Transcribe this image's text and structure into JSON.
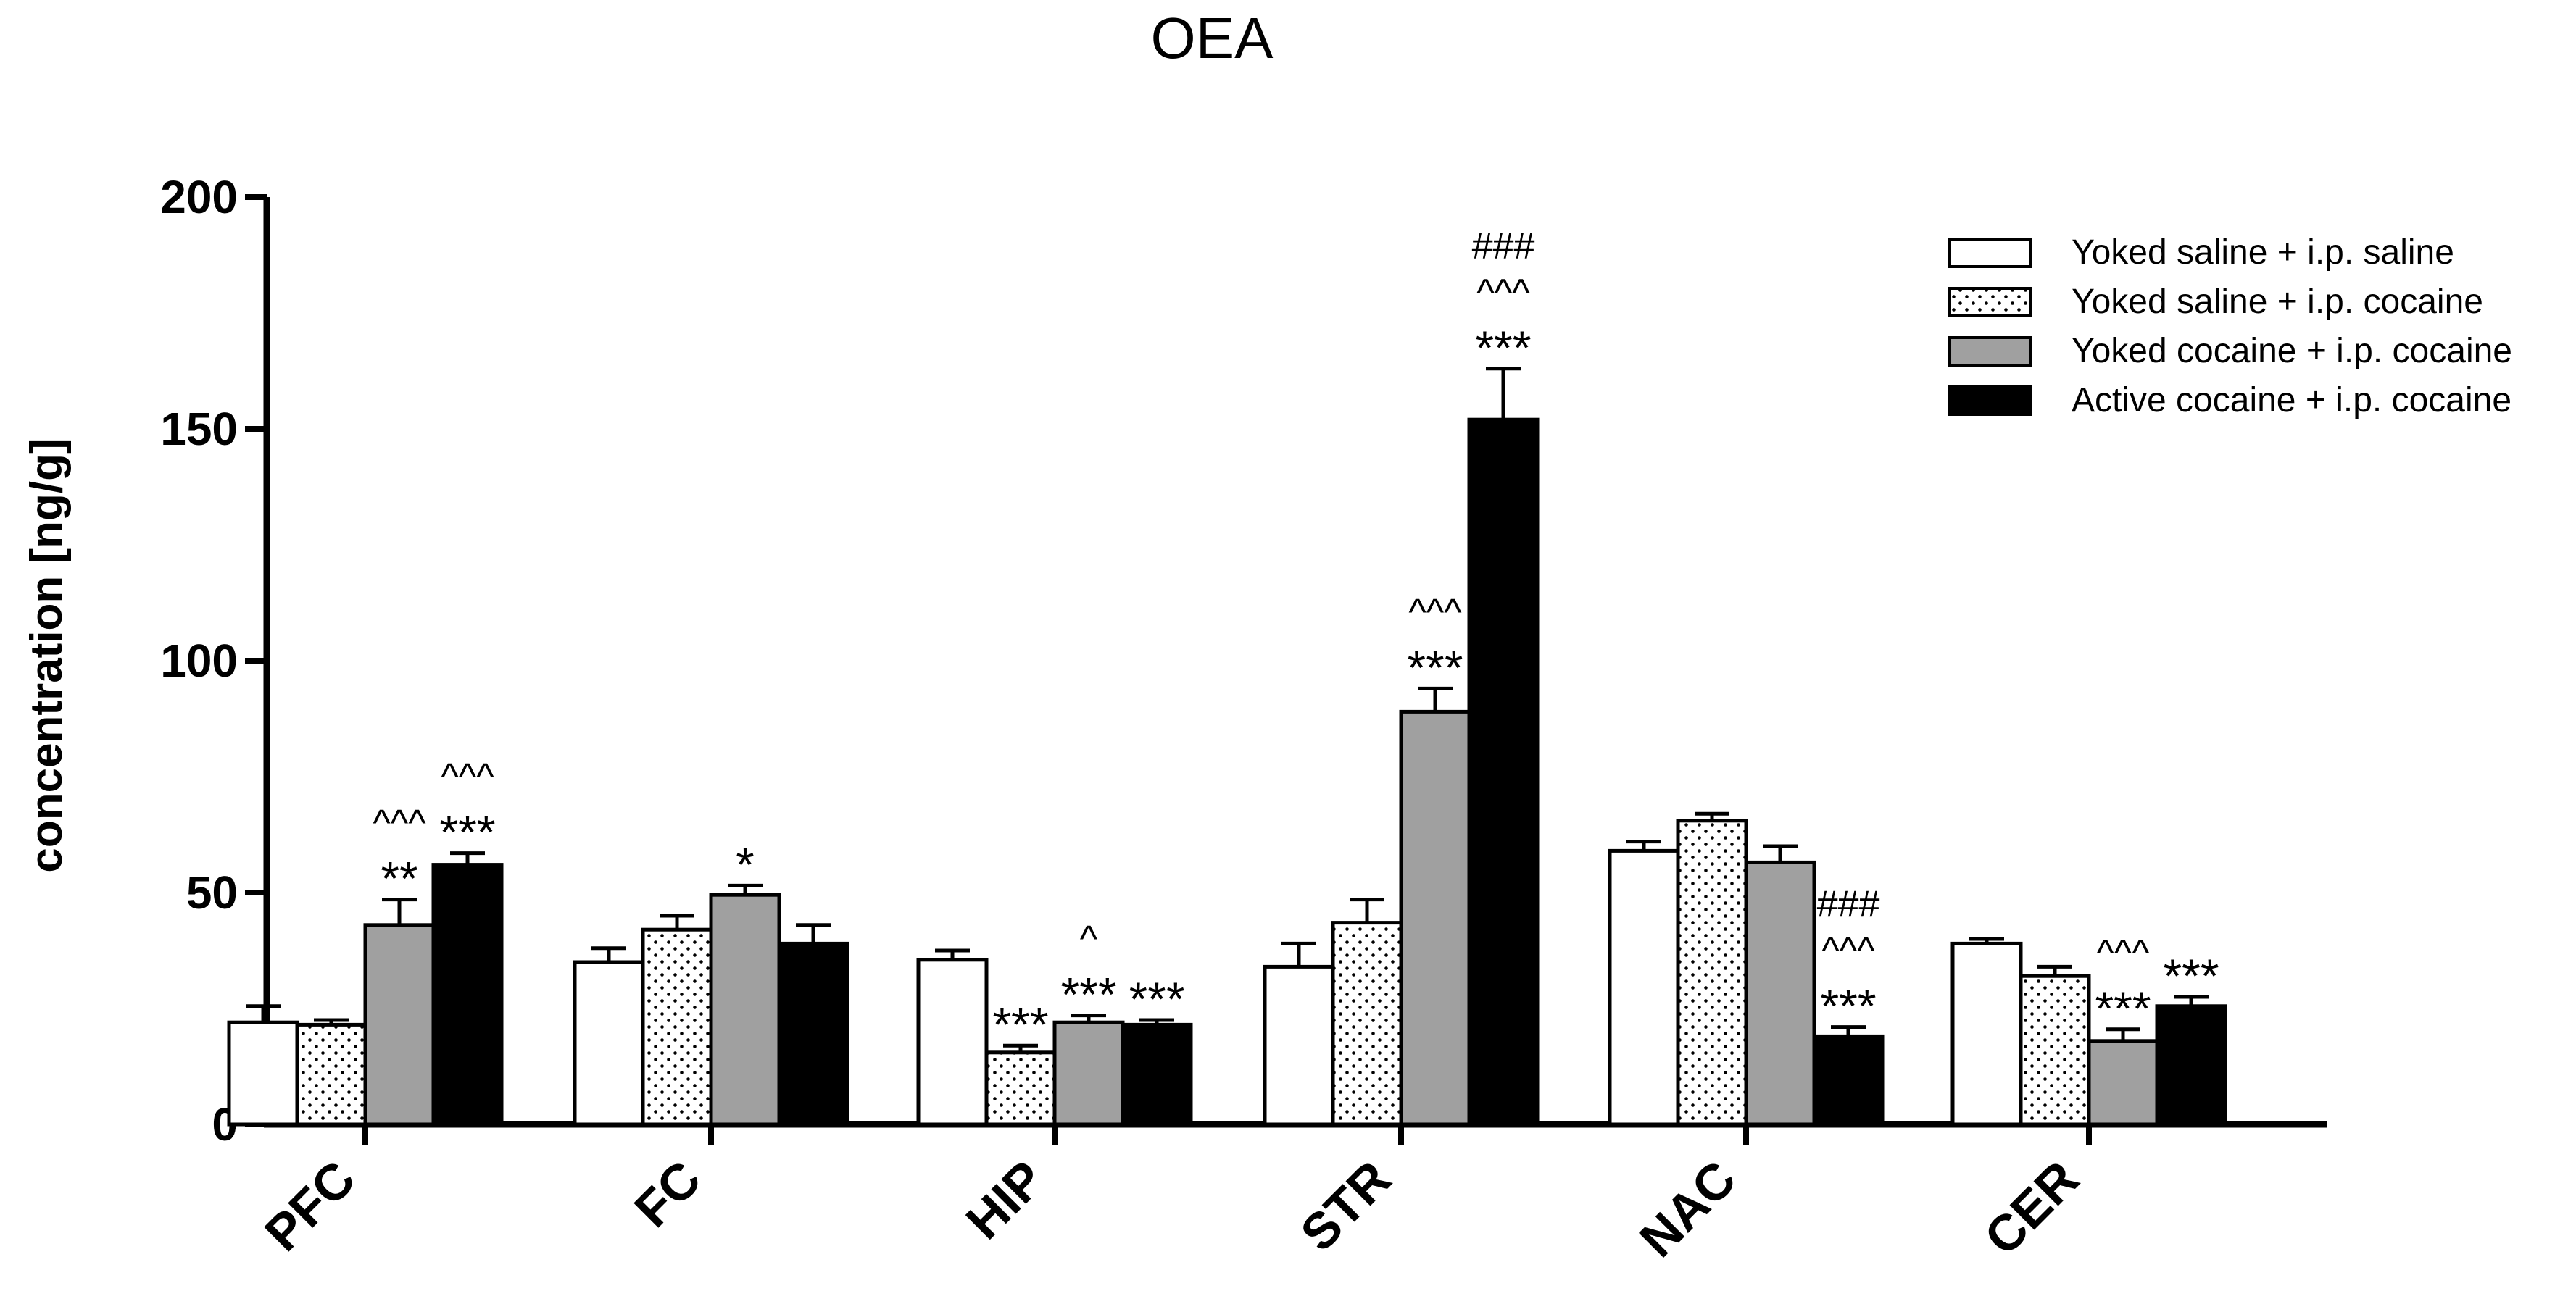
{
  "chart_data": {
    "type": "bar",
    "title": "OEA",
    "xlabel": "",
    "ylabel": "concentration [ng/g]",
    "ylim": [
      0,
      200
    ],
    "yticks": [
      0,
      50,
      100,
      150,
      200
    ],
    "categories": [
      "PFC",
      "FC",
      "HIP",
      "STR",
      "NAC",
      "CER"
    ],
    "series": [
      {
        "name": "Yoked saline + i.p. saline",
        "fill": "white",
        "values": [
          22,
          35,
          35.5,
          34,
          59,
          39
        ],
        "errors": [
          3.5,
          3,
          2,
          5,
          2,
          1
        ],
        "annotations": [
          [],
          [],
          [],
          [],
          [],
          []
        ]
      },
      {
        "name": "Yoked saline + i.p. cocaine",
        "fill": "dotted",
        "values": [
          21.5,
          42,
          15.5,
          43.5,
          65.5,
          32
        ],
        "errors": [
          1,
          3,
          1.5,
          5,
          1.5,
          2
        ],
        "annotations": [
          [],
          [],
          [
            "***"
          ],
          [],
          [],
          []
        ]
      },
      {
        "name": "Yoked cocaine + i.p. cocaine",
        "fill": "gray",
        "values": [
          43,
          49.5,
          22,
          89,
          56.5,
          18
        ],
        "errors": [
          5.5,
          2,
          1.5,
          5,
          3.5,
          2.5
        ],
        "annotations": [
          [
            "**",
            "^^^"
          ],
          [
            "*"
          ],
          [
            "***",
            "^"
          ],
          [
            "***",
            "^^^"
          ],
          [],
          [
            "***",
            "^^^"
          ]
        ]
      },
      {
        "name": "Active cocaine + i.p. cocaine",
        "fill": "black",
        "values": [
          56,
          39,
          21.5,
          152,
          19,
          25.5
        ],
        "errors": [
          2.5,
          4,
          1,
          11,
          2,
          2
        ],
        "annotations": [
          [
            "***",
            "^^^"
          ],
          [],
          [
            "***"
          ],
          [
            "***",
            "^^^",
            "###"
          ],
          [
            "***",
            "^^^",
            "###"
          ],
          [
            "***"
          ]
        ]
      }
    ],
    "legend_position": "top-right",
    "colors": {
      "white_bar": "#ffffff",
      "gray_bar": "#a0a0a0",
      "black_bar": "#000000",
      "stroke": "#000000"
    }
  }
}
